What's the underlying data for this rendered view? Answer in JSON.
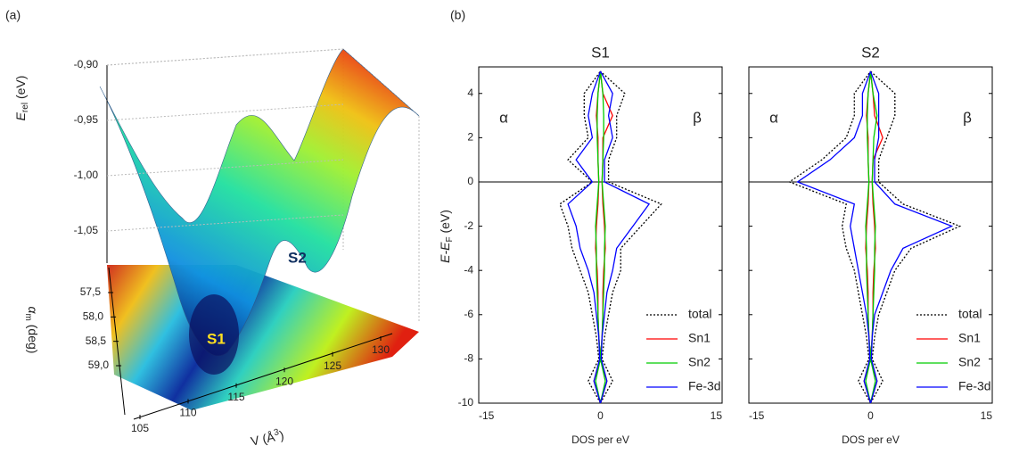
{
  "chart_data": [
    {
      "type": "surface",
      "panel_label": "(a)",
      "z_label": [
        "E",
        "rel",
        " (eV)"
      ],
      "x_label": [
        "V (Å",
        "3",
        ")"
      ],
      "y_label": [
        "α",
        "m",
        " (deg)"
      ],
      "zlim": [
        -1.08,
        -0.88
      ],
      "zticks": [
        {
          "value": -0.9,
          "label": "-0,90"
        },
        {
          "value": -0.95,
          "label": "-0,95"
        },
        {
          "value": -1.0,
          "label": "-1,00"
        },
        {
          "value": -1.05,
          "label": "-1,05"
        }
      ],
      "xlim": [
        105,
        130
      ],
      "xticks": [
        105,
        110,
        115,
        120,
        125,
        130
      ],
      "ylim": [
        57.5,
        59.0
      ],
      "yticks": [
        {
          "value": 57.5,
          "label": "57,5"
        },
        {
          "value": 58.0,
          "label": "58,0"
        },
        {
          "value": 58.5,
          "label": "58,5"
        },
        {
          "value": 59.0,
          "label": "59,0"
        }
      ],
      "annotations": [
        "S1",
        "S2"
      ]
    },
    {
      "type": "dos",
      "panel_label": "(b)",
      "y_label": [
        "E-E",
        "F",
        " (eV)"
      ],
      "x_label": "DOS per eV",
      "spin_labels": [
        "α",
        "β"
      ],
      "ylim": [
        -10,
        5.2
      ],
      "yticks": [
        -10,
        -8,
        -6,
        -4,
        -2,
        0,
        2,
        4
      ],
      "xlim": [
        -15,
        15
      ],
      "xticks": [
        -15,
        0,
        15
      ],
      "x": [
        -10,
        -9,
        -8,
        -7,
        -6,
        -5,
        -4,
        -3,
        -2,
        -1,
        0,
        1,
        2,
        3,
        4,
        5
      ],
      "panels": [
        {
          "title": "S1",
          "series": [
            {
              "name": "total",
              "color": "#000000",
              "alpha": [
                0,
                -1.5,
                -0.2,
                -0.5,
                -1,
                -1.5,
                -2.5,
                -3.5,
                -4,
                -5,
                -1,
                -4,
                -1.5,
                -2,
                -2,
                0
              ],
              "beta": [
                0,
                1.5,
                0.2,
                0.5,
                1,
                1.5,
                2.5,
                2.5,
                5,
                7.5,
                1,
                1,
                2,
                2,
                3,
                0
              ]
            },
            {
              "name": "Sn1",
              "color": "#ff0000",
              "alpha": [
                0,
                -0.8,
                0,
                -0.2,
                -0.3,
                -0.3,
                -0.4,
                -0.6,
                -0.5,
                -0.3,
                -0.2,
                -0.3,
                -0.3,
                -0.5,
                -0.3,
                0
              ],
              "beta": [
                0,
                0.8,
                0,
                0.2,
                0.3,
                0.3,
                0.4,
                0.6,
                0.5,
                0.3,
                0.2,
                0.3,
                0.3,
                1.5,
                0.3,
                0
              ]
            },
            {
              "name": "Sn2",
              "color": "#00cc00",
              "alpha": [
                0,
                -0.6,
                0,
                -0.2,
                -0.3,
                -0.4,
                -0.5,
                -0.5,
                -0.6,
                -0.4,
                -0.2,
                -0.3,
                -0.4,
                -0.4,
                -0.3,
                0
              ],
              "beta": [
                0,
                0.6,
                0,
                0.2,
                0.3,
                0.4,
                0.5,
                0.5,
                0.6,
                0.4,
                0.2,
                0.3,
                0.4,
                0.4,
                0.3,
                0
              ]
            },
            {
              "name": "Fe-3d",
              "color": "#0000ff",
              "alpha": [
                0,
                -0.8,
                -0.1,
                -0.2,
                -0.5,
                -0.8,
                -1.5,
                -2.5,
                -3,
                -4,
                -1,
                -3,
                -1,
                -1.5,
                -1,
                0
              ],
              "beta": [
                0,
                0.8,
                0.1,
                0.2,
                0.5,
                0.8,
                1.5,
                2,
                4,
                6,
                0.5,
                0.5,
                1.5,
                1,
                1.5,
                0
              ]
            }
          ]
        },
        {
          "title": "S2",
          "series": [
            {
              "name": "total",
              "color": "#000000",
              "alpha": [
                0,
                -1.5,
                -0.2,
                -0.5,
                -1,
                -1.5,
                -2,
                -3,
                -3.5,
                -3,
                -10,
                -6,
                -3,
                -2,
                -2,
                0
              ],
              "beta": [
                0,
                1.5,
                0.2,
                0.5,
                1,
                2,
                3,
                5,
                11,
                4,
                1,
                1,
                2,
                3,
                3,
                0
              ]
            },
            {
              "name": "Sn1",
              "color": "#ff0000",
              "alpha": [
                0,
                -0.8,
                0,
                -0.2,
                -0.3,
                -0.3,
                -0.4,
                -0.6,
                -0.5,
                -0.3,
                -0.2,
                -0.3,
                -0.3,
                -0.5,
                -0.3,
                0
              ],
              "beta": [
                0,
                0.8,
                0,
                0.2,
                0.3,
                0.3,
                0.4,
                0.6,
                0.5,
                0.3,
                0.2,
                0.3,
                1.5,
                0.5,
                0.3,
                0
              ]
            },
            {
              "name": "Sn2",
              "color": "#00cc00",
              "alpha": [
                0,
                -0.6,
                0,
                -0.2,
                -0.3,
                -0.4,
                -0.5,
                -0.5,
                -0.6,
                -0.4,
                -0.2,
                -0.3,
                -0.4,
                -0.4,
                -0.3,
                0
              ],
              "beta": [
                0,
                0.6,
                0,
                0.2,
                0.3,
                0.4,
                0.5,
                0.5,
                0.6,
                0.4,
                0.2,
                0.3,
                0.4,
                0.8,
                0.3,
                0
              ]
            },
            {
              "name": "Fe-3d",
              "color": "#0000ff",
              "alpha": [
                0,
                -0.8,
                -0.1,
                -0.2,
                -0.5,
                -1,
                -1.5,
                -2,
                -2.5,
                -2,
                -9,
                -5,
                -2,
                -1,
                -1,
                0
              ],
              "beta": [
                0,
                0.8,
                0.1,
                0.2,
                0.5,
                1.5,
                2.5,
                4,
                10,
                3,
                0.5,
                0.5,
                1,
                1,
                1,
                0
              ]
            }
          ]
        }
      ]
    }
  ]
}
